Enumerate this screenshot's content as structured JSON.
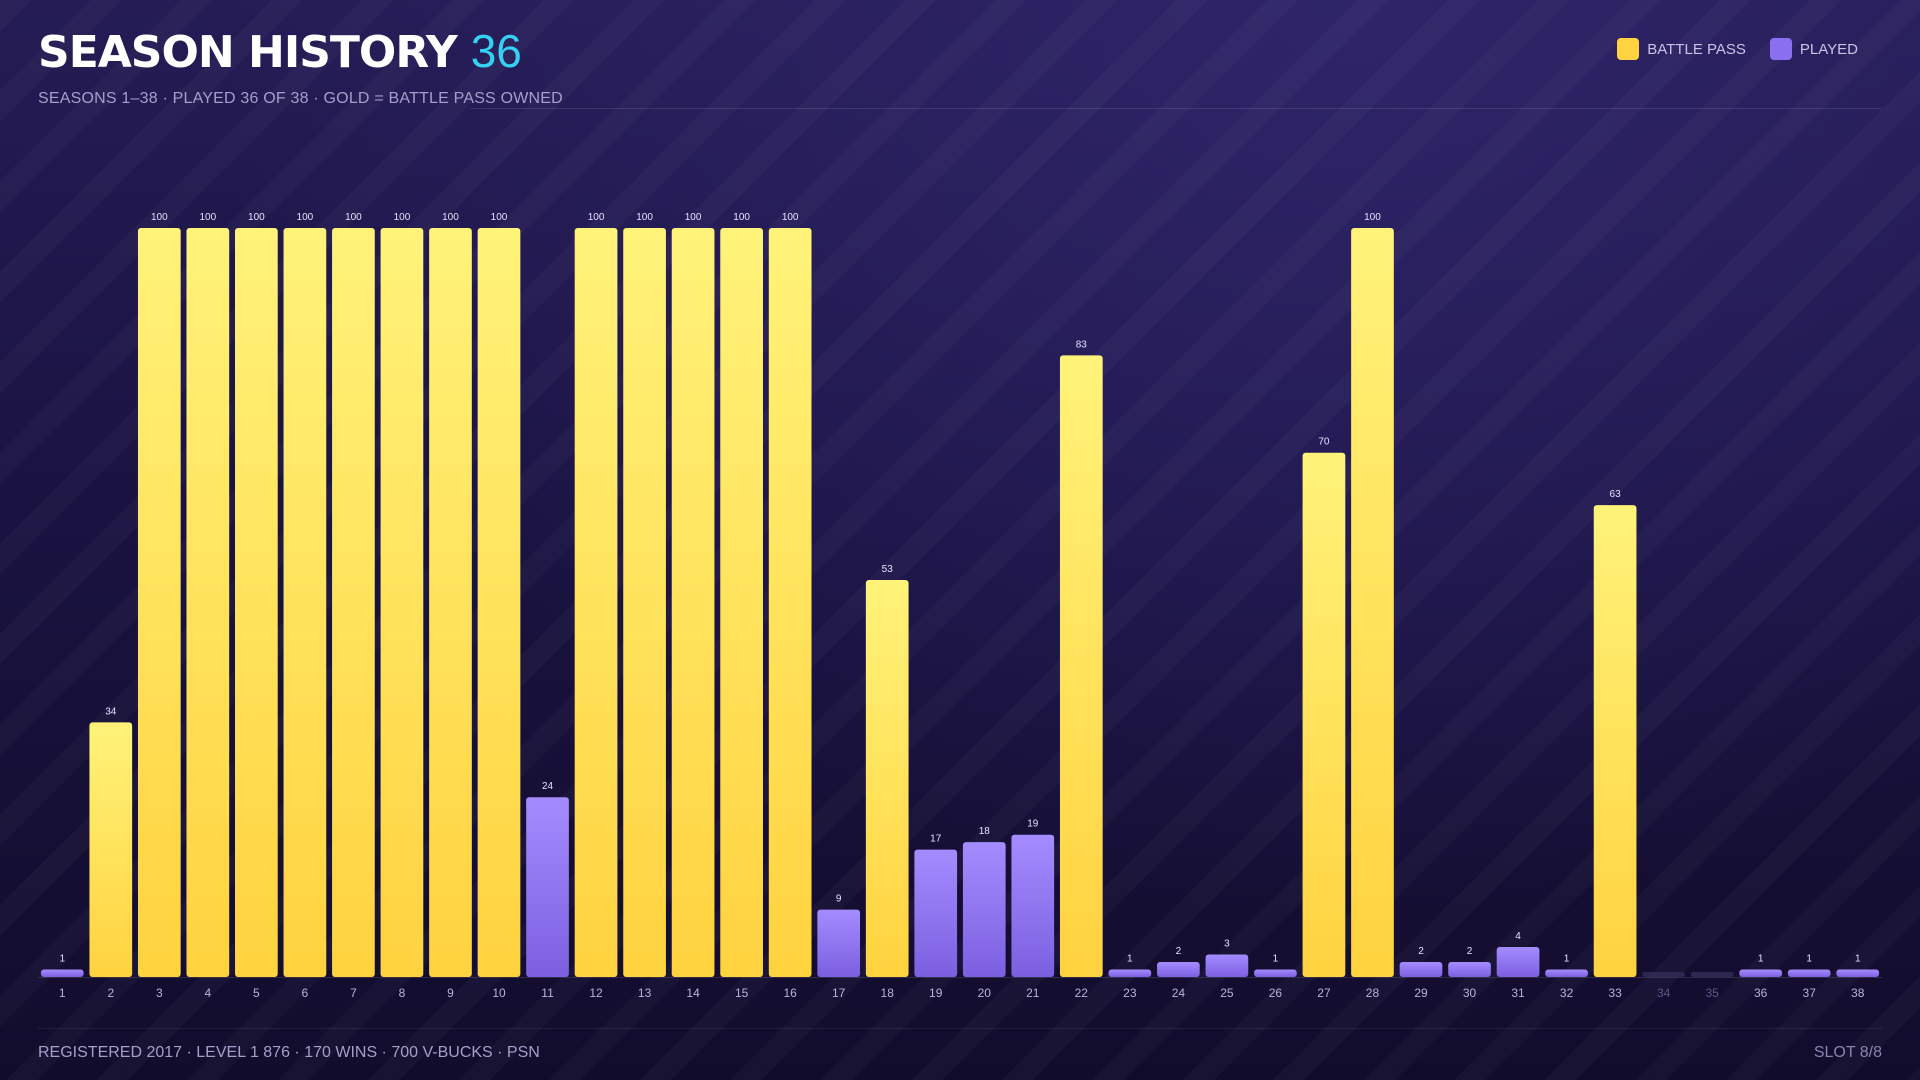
{
  "header": {
    "title": "SEASON HISTORY",
    "count": "36"
  },
  "subtitle": "SEASONS 1–38  ·  PLAYED 36 OF 38  ·  GOLD = BATTLE PASS OWNED",
  "legend": [
    {
      "label": "BATTLE PASS",
      "color": "#ffd23f"
    },
    {
      "label": "PLAYED",
      "color": "#8a6ff0"
    }
  ],
  "colors": {
    "gold": "#ffd23f",
    "gold_top": "#fff37a",
    "purple": "#7c5fe0",
    "purple_top": "#a48cff",
    "empty": "#2e2850"
  },
  "chart_data": {
    "type": "bar",
    "categories": [
      "1",
      "2",
      "3",
      "4",
      "5",
      "6",
      "7",
      "8",
      "9",
      "10",
      "11",
      "12",
      "13",
      "14",
      "15",
      "16",
      "17",
      "18",
      "19",
      "20",
      "21",
      "22",
      "23",
      "24",
      "25",
      "26",
      "27",
      "28",
      "29",
      "30",
      "31",
      "32",
      "33",
      "34",
      "35",
      "36",
      "37",
      "38"
    ],
    "values": [
      1,
      34,
      100,
      100,
      100,
      100,
      100,
      100,
      100,
      100,
      24,
      100,
      100,
      100,
      100,
      100,
      9,
      53,
      17,
      18,
      19,
      83,
      1,
      2,
      3,
      1,
      70,
      100,
      2,
      2,
      4,
      1,
      63,
      0,
      0,
      1,
      1,
      1
    ],
    "battle_pass": [
      false,
      true,
      true,
      true,
      true,
      true,
      true,
      true,
      true,
      true,
      false,
      true,
      true,
      true,
      true,
      true,
      false,
      true,
      false,
      false,
      false,
      true,
      false,
      false,
      false,
      false,
      true,
      true,
      false,
      false,
      false,
      false,
      true,
      false,
      false,
      false,
      false,
      false
    ],
    "played": [
      true,
      true,
      true,
      true,
      true,
      true,
      true,
      true,
      true,
      true,
      true,
      true,
      true,
      true,
      true,
      true,
      true,
      true,
      true,
      true,
      true,
      true,
      true,
      true,
      true,
      true,
      true,
      true,
      true,
      true,
      true,
      true,
      true,
      false,
      false,
      true,
      true,
      true
    ],
    "ylim": [
      0,
      100
    ],
    "title": "",
    "xlabel": "",
    "ylabel": ""
  },
  "footer": {
    "left": "REGISTERED 2017  ·  LEVEL 1 876  ·  170 WINS  ·  700 V-BUCKS  ·  PSN",
    "right": "SLOT 8/8"
  }
}
